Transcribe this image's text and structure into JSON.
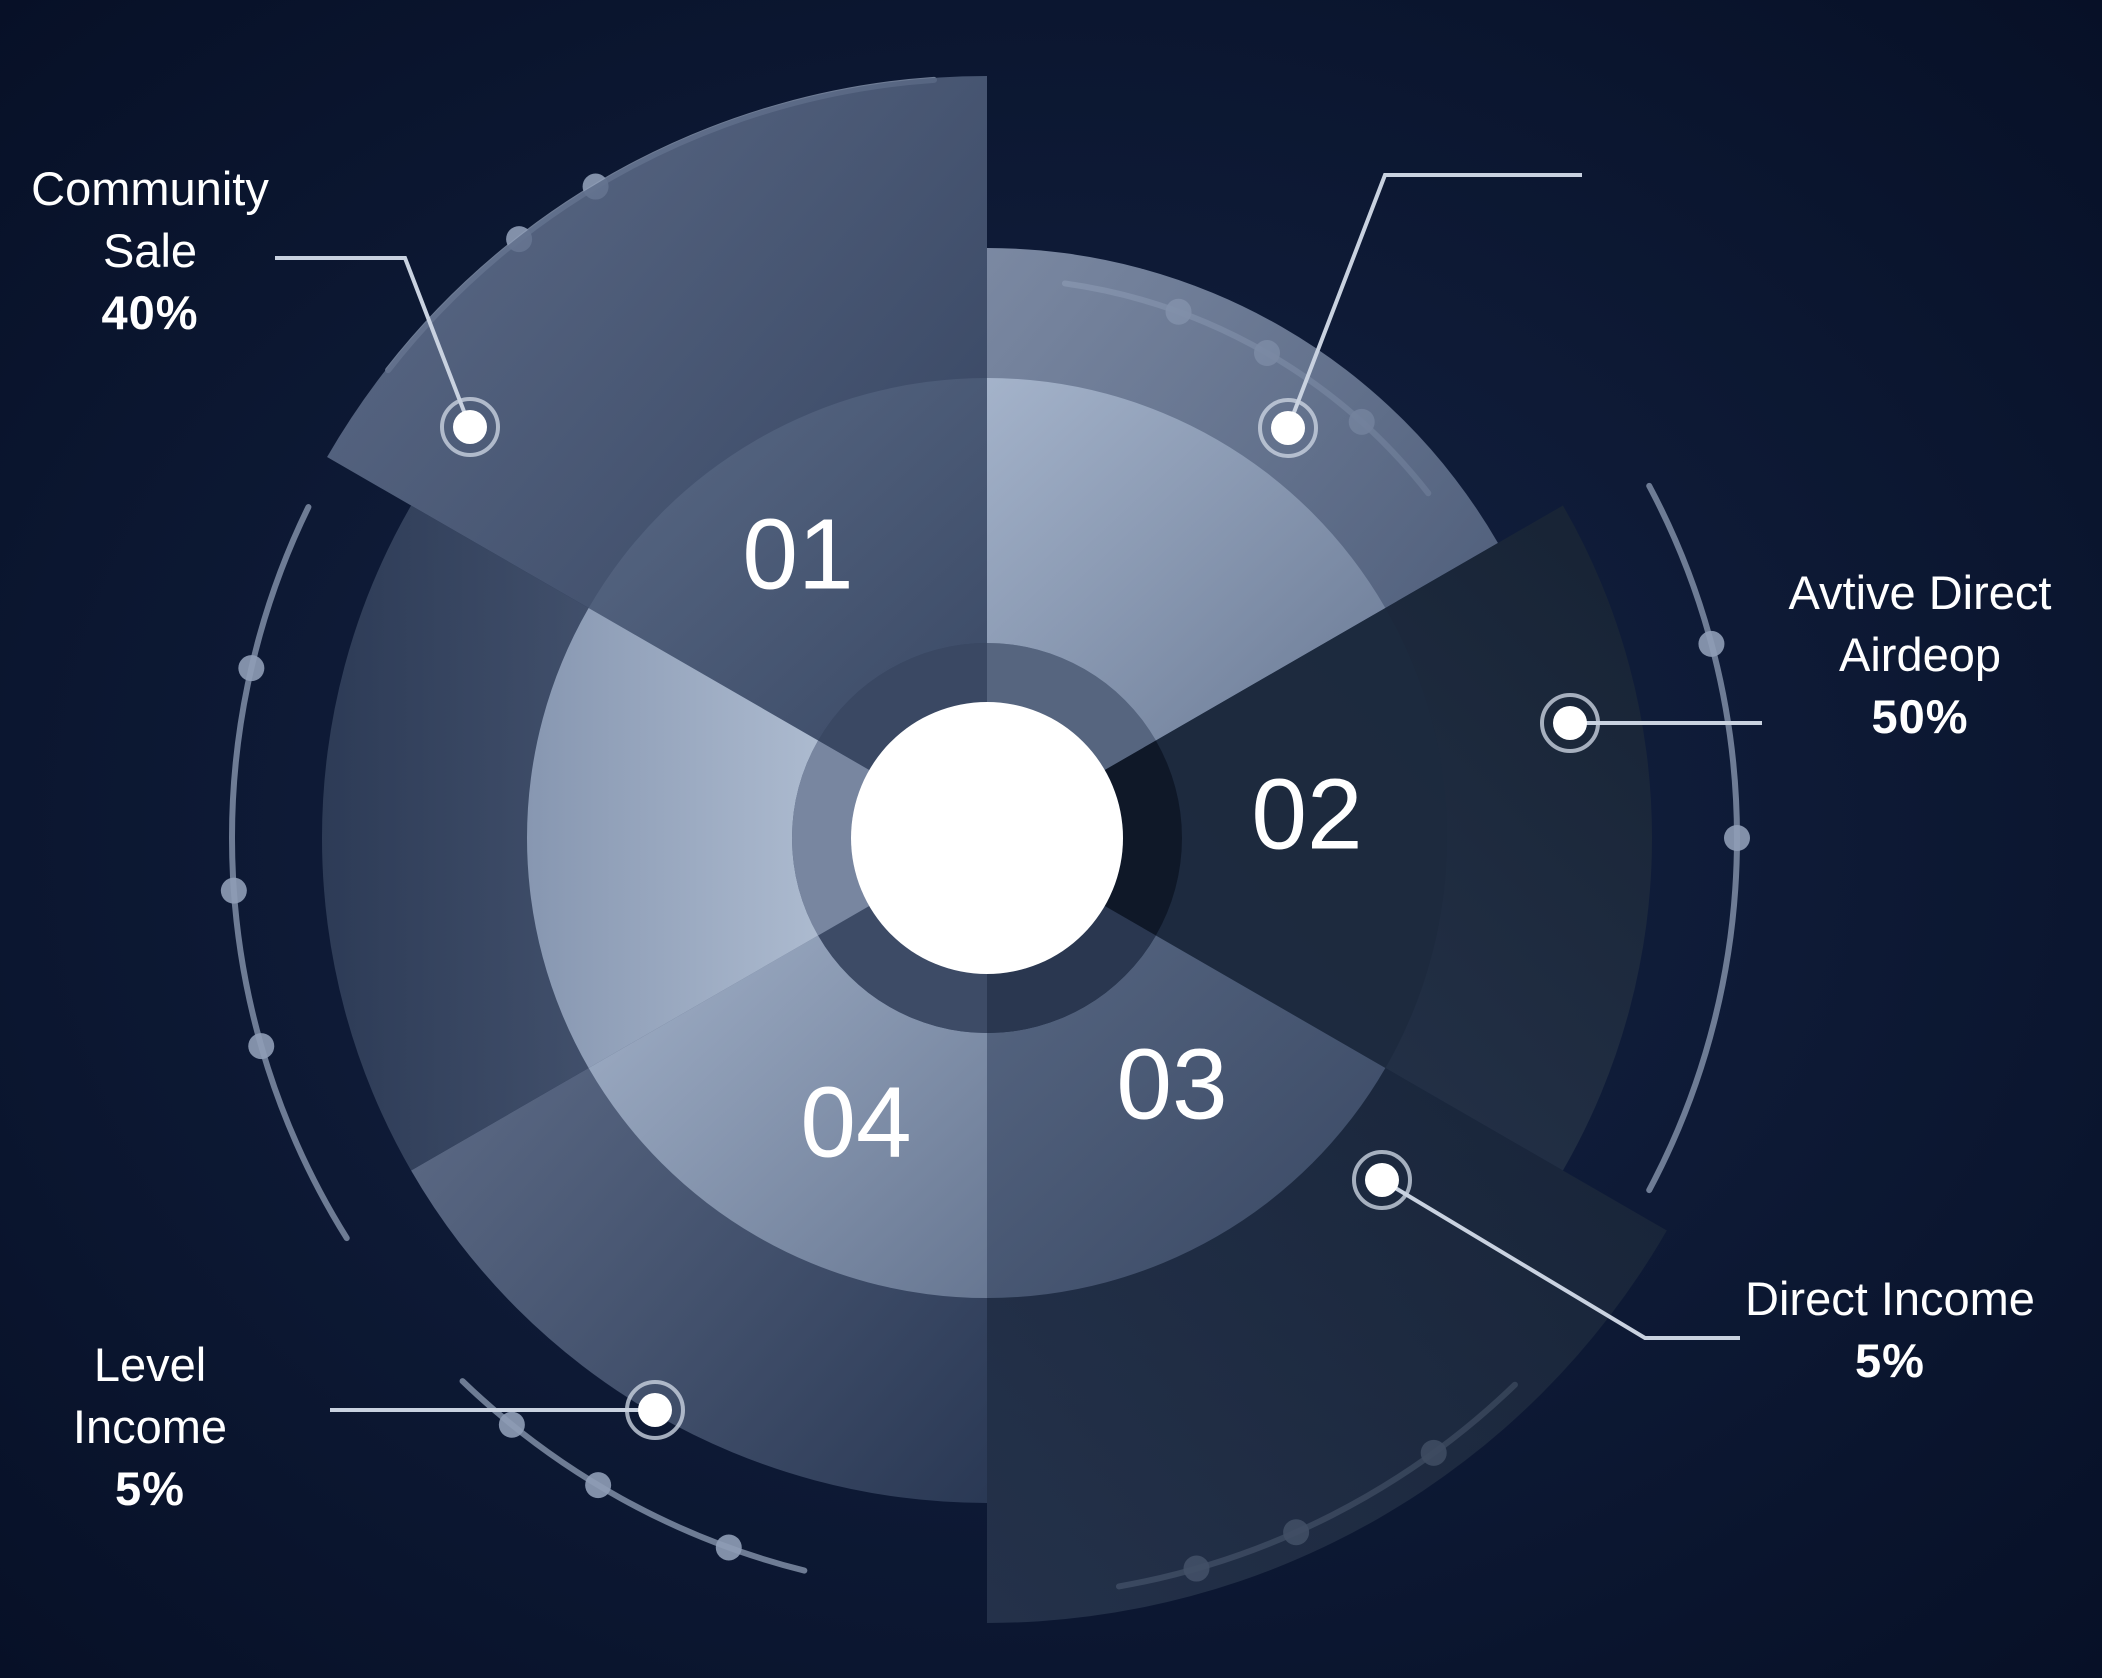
{
  "chart_data": {
    "type": "pie",
    "center_label": "",
    "segments": [
      {
        "number": "01",
        "name": "Community Sale",
        "percent_label": "40%",
        "value": 40
      },
      {
        "number": "02",
        "name": "Avtive Direct Airdeop",
        "percent_label": "50%",
        "value": 50
      },
      {
        "number": "03",
        "name": "Direct Income",
        "percent_label": "5%",
        "value": 5
      },
      {
        "number": "04",
        "name": "Level Income",
        "percent_label": "5%",
        "value": 5
      }
    ],
    "colors": {
      "background": "#08132e",
      "segment_01": "#4a5a78",
      "segment_02": "#8a9ab4",
      "segment_03": "#1a2638",
      "segment_04": "#6f7f9a",
      "center": "#ffffff",
      "ring": "#8f9db6"
    }
  }
}
